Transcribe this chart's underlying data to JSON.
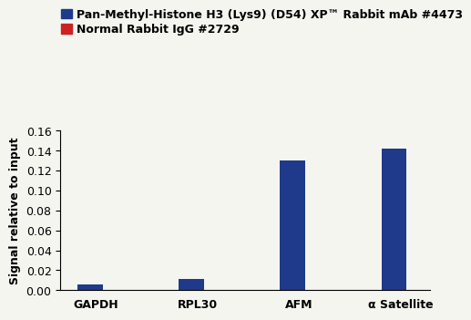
{
  "categories": [
    "GAPDH",
    "RPL30",
    "AFM",
    "α Satellite"
  ],
  "blue_values": [
    0.006,
    0.011,
    0.13,
    0.142
  ],
  "red_values": [
    0.0002,
    0.0002,
    0.0002,
    0.0002
  ],
  "blue_color": "#1F3A8A",
  "red_color": "#CC2222",
  "ylabel": "Signal relative to input",
  "ylim": [
    0,
    0.16
  ],
  "yticks": [
    0,
    0.02,
    0.04,
    0.06,
    0.08,
    0.1,
    0.12,
    0.14,
    0.16
  ],
  "legend_label_blue": "Pan-Methyl-Histone H3 (Lys9) (D54) XP™ Rabbit mAb #4473",
  "legend_label_red": "Normal Rabbit IgG #2729",
  "bar_width": 0.25,
  "background_color": "#f5f5f0",
  "tick_fontsize": 9,
  "label_fontsize": 9,
  "legend_fontsize": 9
}
